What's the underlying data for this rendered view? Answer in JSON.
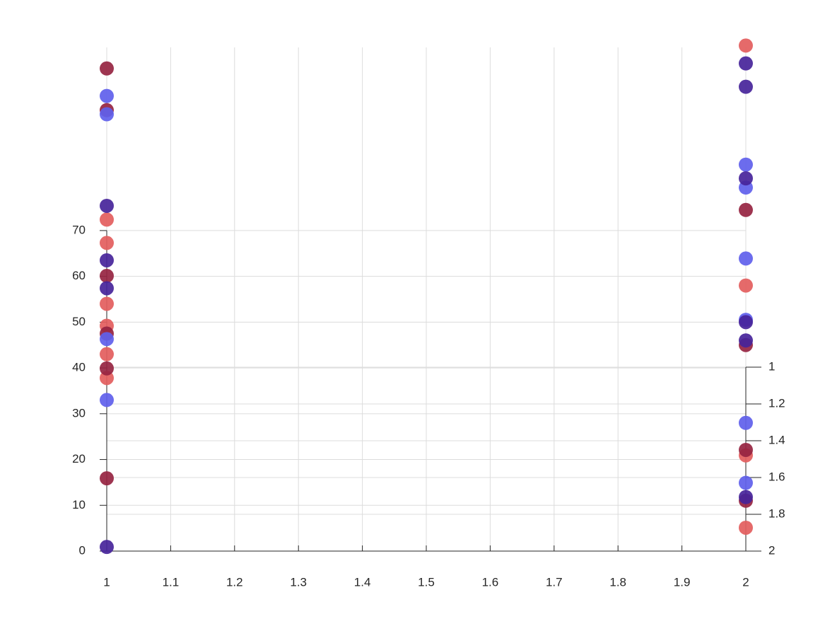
{
  "chart_data": {
    "type": "scatter",
    "xlim": [
      1,
      2
    ],
    "xticks": [
      1,
      1.1,
      1.2,
      1.3,
      1.4,
      1.5,
      1.6,
      1.7,
      1.8,
      1.9,
      2
    ],
    "ylim": [
      0,
      110
    ],
    "yticks": [
      0,
      10,
      20,
      30,
      40,
      50,
      60,
      70
    ],
    "y2lim": [
      1,
      2
    ],
    "y2ticks": [
      1,
      1.2,
      1.4,
      1.6,
      1.8,
      2
    ],
    "y2_reversed": true,
    "grid": true,
    "series": [
      {
        "color": "#e35d5d",
        "x": [
          1,
          1,
          1,
          1,
          1,
          1,
          2,
          2,
          2,
          2
        ],
        "values": [
          72.4,
          67.3,
          54.0,
          49.2,
          43.0,
          37.8,
          110.4,
          58.0,
          20.9,
          5.1
        ]
      },
      {
        "color": "#962441",
        "x": [
          1,
          1,
          1,
          1,
          1,
          1,
          2,
          2,
          2,
          2
        ],
        "values": [
          105.4,
          96.3,
          60.1,
          47.5,
          39.9,
          15.9,
          74.5,
          45.0,
          22.1,
          11.0
        ]
      },
      {
        "color": "#5f5fec",
        "x": [
          1,
          1,
          1,
          1,
          2,
          2,
          2,
          2,
          2,
          2
        ],
        "values": [
          99.4,
          95.4,
          46.3,
          33.0,
          84.4,
          79.4,
          63.9,
          50.5,
          28.0,
          14.9
        ]
      },
      {
        "color": "#46249a",
        "x": [
          1,
          1,
          1,
          1,
          2,
          2,
          2,
          2,
          2,
          2
        ],
        "values": [
          75.4,
          63.5,
          57.4,
          0.9,
          106.5,
          101.4,
          81.4,
          50.0,
          46.0,
          11.8
        ]
      }
    ]
  }
}
